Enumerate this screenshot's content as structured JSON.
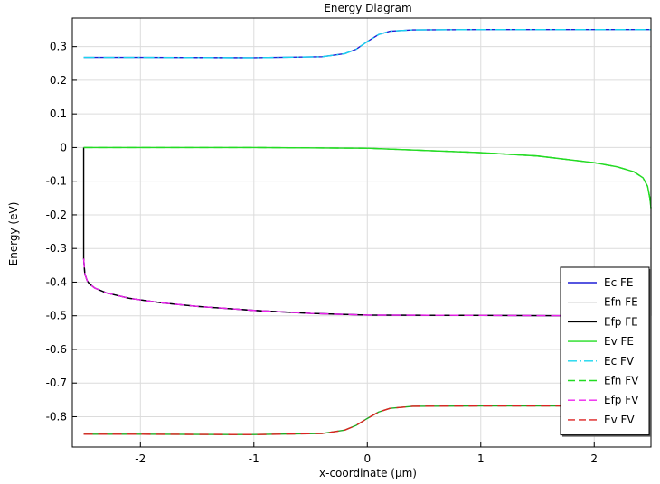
{
  "chart_data": {
    "type": "line",
    "title": "Energy Diagram",
    "xlabel": "x-coordinate (µm)",
    "ylabel": "Energy (eV)",
    "xlim": [
      -2.6,
      2.5
    ],
    "ylim": [
      -0.89,
      0.385
    ],
    "xticks": [
      -2,
      -1,
      0,
      1,
      2
    ],
    "xtick_labels": [
      "-2",
      "-1",
      "0",
      "1",
      "2"
    ],
    "yticks": [
      0.3,
      0.2,
      0.1,
      0,
      -0.1,
      -0.2,
      -0.3,
      -0.4,
      -0.5,
      -0.6,
      -0.7,
      -0.8
    ],
    "ytick_labels": [
      "0.3",
      "0.2",
      "0.1",
      "0",
      "-0.1",
      "-0.2",
      "-0.3",
      "-0.4",
      "-0.5",
      "-0.6",
      "-0.7",
      "-0.8"
    ],
    "grid": true,
    "legend_position": "right",
    "series": [
      {
        "name": "Ec FE",
        "color": "#1f1fd6",
        "dash": "solid",
        "x": [
          -2.5,
          -2.0,
          -1.0,
          -0.4,
          -0.2,
          -0.1,
          0.0,
          0.1,
          0.2,
          0.4,
          1.0,
          2.0,
          2.5
        ],
        "y": [
          0.268,
          0.268,
          0.267,
          0.27,
          0.279,
          0.292,
          0.315,
          0.336,
          0.346,
          0.35,
          0.351,
          0.351,
          0.351
        ]
      },
      {
        "name": "Efn FE",
        "color": "#c0c0c0",
        "dash": "solid",
        "x": [
          -2.5,
          -2.0,
          -1.0,
          0.0,
          1.0,
          1.5,
          2.0,
          2.2,
          2.35,
          2.43,
          2.47,
          2.49,
          2.5,
          2.5
        ],
        "y": [
          0.0,
          0.0,
          0.0,
          -0.002,
          -0.015,
          -0.025,
          -0.045,
          -0.057,
          -0.072,
          -0.09,
          -0.115,
          -0.15,
          -0.18,
          -0.5
        ]
      },
      {
        "name": "Efp FE",
        "color": "#000000",
        "dash": "solid",
        "x": [
          -2.5,
          -2.5,
          -2.49,
          -2.47,
          -2.45,
          -2.4,
          -2.3,
          -2.1,
          -1.8,
          -1.5,
          -1.0,
          -0.5,
          0.0,
          1.0,
          2.0,
          2.5
        ],
        "y": [
          0.0,
          -0.33,
          -0.375,
          -0.395,
          -0.405,
          -0.418,
          -0.432,
          -0.448,
          -0.462,
          -0.472,
          -0.484,
          -0.493,
          -0.498,
          -0.499,
          -0.5,
          -0.5
        ]
      },
      {
        "name": "Ev FE",
        "color": "#22dd22",
        "dash": "solid",
        "x": [
          -2.5,
          -2.0,
          -1.0,
          0.0,
          1.0,
          1.5,
          2.0,
          2.2,
          2.35,
          2.43,
          2.47,
          2.49,
          2.5
        ],
        "y": [
          0.0,
          0.0,
          0.0,
          -0.002,
          -0.015,
          -0.025,
          -0.045,
          -0.057,
          -0.072,
          -0.09,
          -0.115,
          -0.15,
          -0.18
        ]
      },
      {
        "name": "Ec FV",
        "color": "#18d6ee",
        "dash": "dashdot",
        "x": [
          -2.5,
          -2.0,
          -1.0,
          -0.4,
          -0.2,
          -0.1,
          0.0,
          0.1,
          0.2,
          0.4,
          1.0,
          2.0,
          2.5
        ],
        "y": [
          0.268,
          0.268,
          0.267,
          0.27,
          0.279,
          0.292,
          0.315,
          0.336,
          0.346,
          0.35,
          0.351,
          0.351,
          0.351
        ]
      },
      {
        "name": "Efn FV",
        "color": "#22dd22",
        "dash": "dashed",
        "x": [
          -2.5,
          -2.0,
          -1.0,
          0.0,
          1.0,
          1.5,
          2.0,
          2.2,
          2.35,
          2.43,
          2.47,
          2.49,
          2.5
        ],
        "y": [
          0.0,
          0.0,
          0.0,
          -0.002,
          -0.015,
          -0.025,
          -0.045,
          -0.057,
          -0.072,
          -0.09,
          -0.115,
          -0.15,
          -0.18
        ]
      },
      {
        "name": "Efp FV",
        "color": "#ee22ee",
        "dash": "dashed",
        "x": [
          -2.5,
          -2.49,
          -2.47,
          -2.45,
          -2.4,
          -2.3,
          -2.1,
          -1.8,
          -1.5,
          -1.0,
          -0.5,
          0.0,
          1.0,
          2.0,
          2.5
        ],
        "y": [
          -0.33,
          -0.375,
          -0.395,
          -0.405,
          -0.418,
          -0.432,
          -0.448,
          -0.462,
          -0.472,
          -0.484,
          -0.493,
          -0.498,
          -0.499,
          -0.5,
          -0.5
        ]
      },
      {
        "name": "Ev FV",
        "color": "#dd2222",
        "dash": "dashed",
        "x": [
          -2.5,
          -2.0,
          -1.0,
          -0.4,
          -0.2,
          -0.1,
          0.0,
          0.1,
          0.2,
          0.4,
          1.0,
          2.0,
          2.5
        ],
        "y": [
          -0.852,
          -0.852,
          -0.853,
          -0.85,
          -0.84,
          -0.826,
          -0.805,
          -0.786,
          -0.775,
          -0.769,
          -0.768,
          -0.768,
          -0.768
        ]
      }
    ],
    "extra_traces": [
      {
        "color": "#22aa22",
        "dash": "solid",
        "x": [
          -2.5,
          -2.0,
          -1.0,
          -0.4,
          -0.2,
          -0.1,
          0.0,
          0.1,
          0.2,
          0.4,
          1.0,
          2.0,
          2.5
        ],
        "y": [
          -0.852,
          -0.852,
          -0.853,
          -0.85,
          -0.84,
          -0.826,
          -0.805,
          -0.786,
          -0.775,
          -0.769,
          -0.768,
          -0.768,
          -0.768
        ]
      },
      {
        "color": "#6a1fd6",
        "dash": "solid",
        "x": [
          -2.5,
          -2.49,
          -2.47,
          -2.45,
          -2.4,
          -2.3,
          -2.1,
          -1.8,
          -1.5,
          -1.0,
          -0.5,
          0.0,
          1.0,
          2.0,
          2.5
        ],
        "y": [
          -0.33,
          -0.375,
          -0.395,
          -0.405,
          -0.418,
          -0.432,
          -0.448,
          -0.462,
          -0.472,
          -0.484,
          -0.493,
          -0.498,
          -0.499,
          -0.5,
          -0.5
        ]
      }
    ]
  }
}
